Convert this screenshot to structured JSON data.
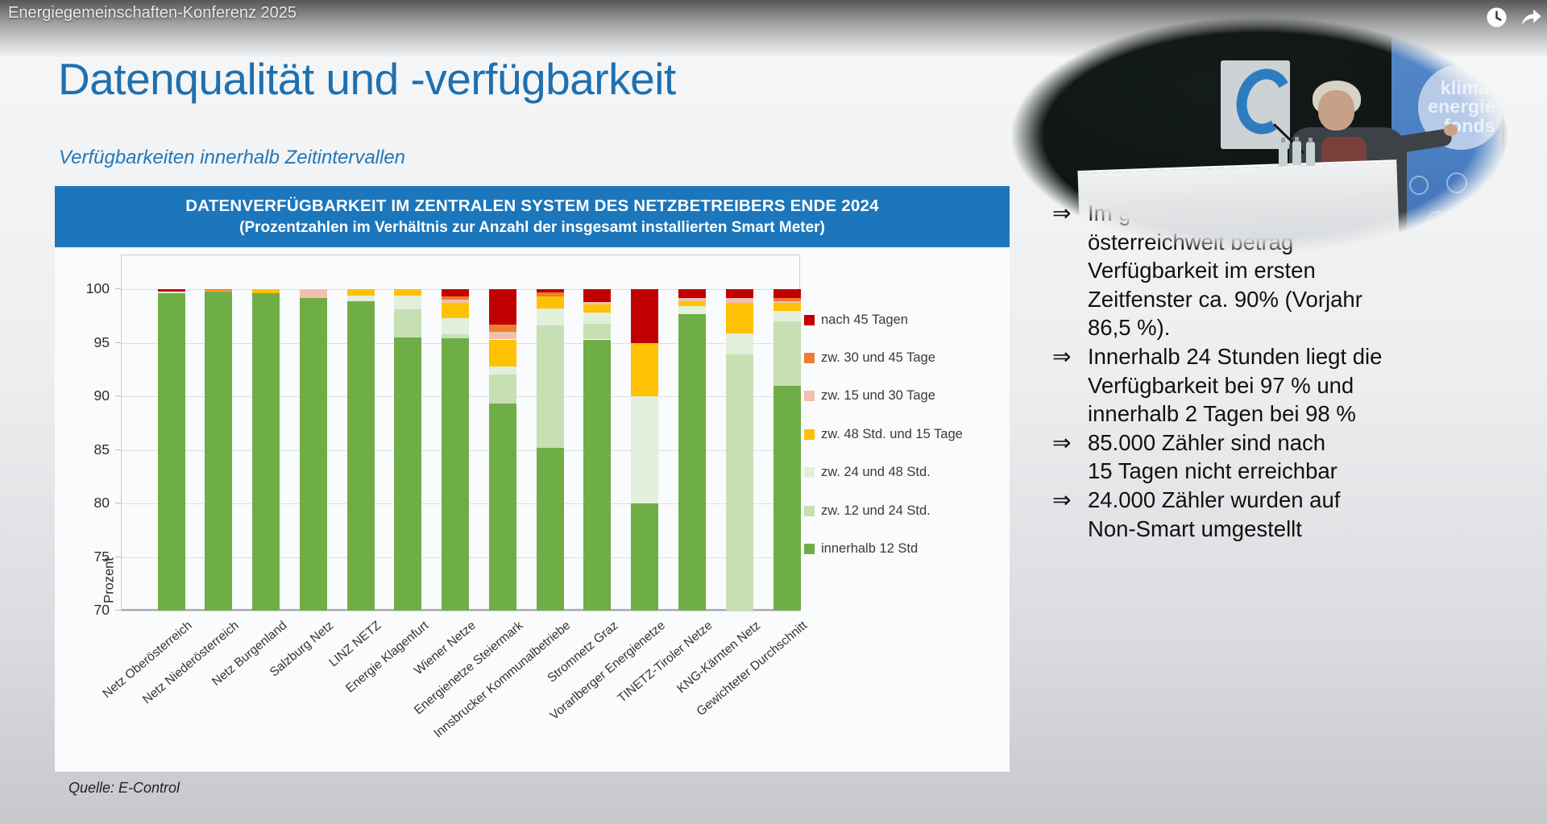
{
  "player": {
    "video_title": "Energiegemeinschaften-Konferenz 2025"
  },
  "slide": {
    "title": "Datenqualität und -verfügbarkeit",
    "subtitle": "Verfügbarkeiten innerhalb Zeitintervallen",
    "source": "Quelle: E-Control",
    "bullet_marker": "⇒",
    "bullets": [
      {
        "lines": [
          "Im gewichteten",
          "österreichweit beträg",
          "Verfügbarkeit im ersten",
          "Zeitfenster ca. 90% (Vorjahr",
          "86,5 %)."
        ]
      },
      {
        "lines": [
          "Innerhalb 24 Stunden liegt die",
          "Verfügbarkeit bei 97 % und",
          "innerhalb 2 Tagen bei 98 %"
        ]
      },
      {
        "lines": [
          "85.000 Zähler sind nach",
          "15 Tagen nicht erreichbar"
        ]
      },
      {
        "lines": [
          "24.000 Zähler wurden auf",
          "Non-Smart umgestellt"
        ]
      }
    ]
  },
  "webcam": {
    "logo_lines": [
      "klima-",
      "energie",
      "fonds"
    ]
  },
  "chart_data": {
    "type": "bar",
    "stacked": true,
    "title_lines": [
      "DATENVERFÜGBARKEIT IM ZENTRALEN SYSTEM DES NETZBETREIBERS ENDE 2024",
      "(Prozentzahlen im Verhältnis zur Anzahl der insgesamt installierten Smart Meter)"
    ],
    "header_bg": "#1c76bb",
    "ylabel": "Prozent",
    "ylim": [
      70,
      100
    ],
    "yticks": [
      70,
      75,
      80,
      85,
      90,
      95,
      100
    ],
    "grid": true,
    "legend_position": "right",
    "categories": [
      "Netz Oberösterreich",
      "Netz Niederösterreich",
      "Netz Burgenland",
      "Salzburg Netz",
      "LINZ NETZ",
      "Energie Klagenfurt",
      "Wiener Netze",
      "Energienetze Steiermark",
      "Innsbrucker Kommunalbetriebe",
      "Stromnetz Graz",
      "Vorarlberger Energienetze",
      "TINETZ-Tiroler Netze",
      "KNG-Kärnten Netz",
      "Gewichteter Durchschnitt"
    ],
    "series": [
      {
        "name": "innerhalb 12 Std",
        "color": "#6fad47",
        "values": [
          99.6,
          99.75,
          99.65,
          99.2,
          98.9,
          95.5,
          95.4,
          89.3,
          85.2,
          95.3,
          80.0,
          97.7,
          0,
          91.0
        ]
      },
      {
        "name": "zw. 12 und 24 Std.",
        "color": "#c6e0b4",
        "values": [
          0,
          0,
          0,
          0,
          0,
          2.6,
          0.4,
          2.7,
          11.4,
          1.5,
          0,
          0,
          93.9,
          6.0
        ]
      },
      {
        "name": "zw. 24 und 48 Std.",
        "color": "#e2efda",
        "values": [
          0.15,
          0,
          0,
          0,
          0.5,
          1.3,
          1.5,
          0.8,
          1.6,
          1.0,
          10.0,
          0.75,
          2.0,
          1.0
        ]
      },
      {
        "name": "zw. 48 Std. und 15 Tage",
        "color": "#ffc103",
        "values": [
          0,
          0.1,
          0.35,
          0,
          0.6,
          0.6,
          1.4,
          2.5,
          1.1,
          0.8,
          5.0,
          0.45,
          2.8,
          0.7
        ]
      },
      {
        "name": "zw. 15 und 30 Tage",
        "color": "#f2c0b0",
        "values": [
          0,
          0,
          0,
          0.8,
          0,
          0,
          0.3,
          0.7,
          0,
          0.2,
          0,
          0.3,
          0.5,
          0.2
        ]
      },
      {
        "name": "zw. 30 und 45 Tage",
        "color": "#ed7d31",
        "values": [
          0,
          0.15,
          0,
          0,
          0,
          0,
          0.3,
          0.7,
          0.4,
          0,
          0,
          0,
          0,
          0.3
        ]
      },
      {
        "name": "nach 45 Tagen",
        "color": "#c00000",
        "values": [
          0.25,
          0,
          0,
          0,
          0,
          0,
          0.7,
          3.3,
          0.3,
          1.2,
          5.0,
          0.8,
          0.8,
          0.8
        ]
      }
    ]
  }
}
